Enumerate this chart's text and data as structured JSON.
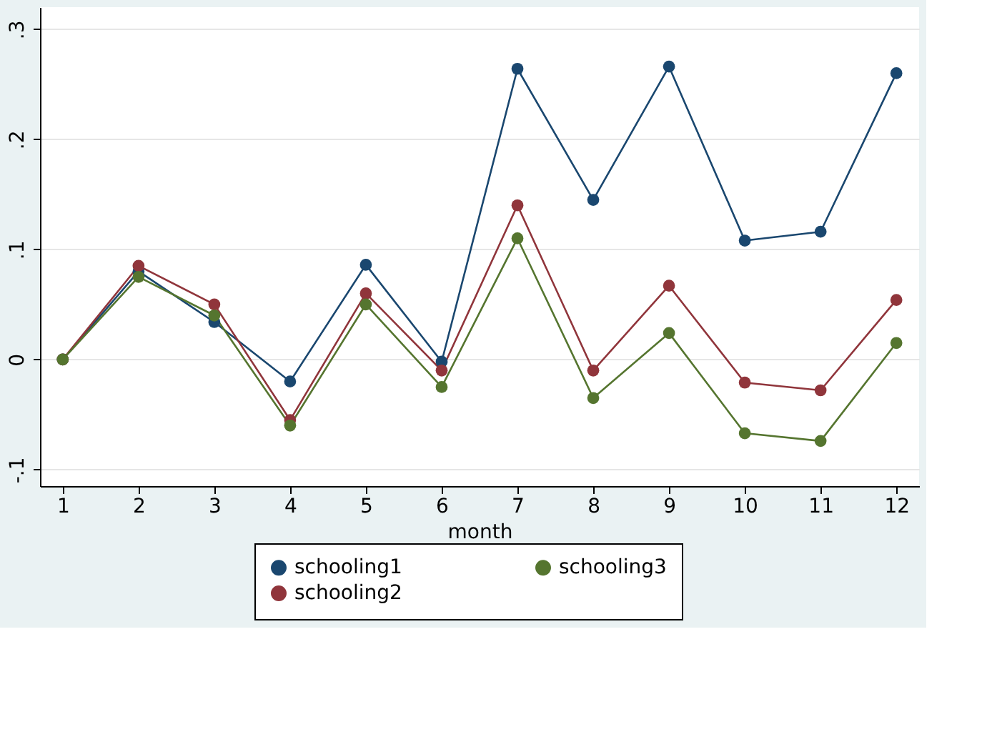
{
  "chart_data": {
    "type": "line",
    "xlabel": "month",
    "x": [
      1,
      2,
      3,
      4,
      5,
      6,
      7,
      8,
      9,
      10,
      11,
      12
    ],
    "series": [
      {
        "name": "schooling1",
        "color": "#1a476f",
        "values": [
          0,
          0.08,
          0.034,
          -0.02,
          0.086,
          -0.002,
          0.264,
          0.145,
          0.266,
          0.108,
          0.116,
          0.26
        ]
      },
      {
        "name": "schooling2",
        "color": "#90353b",
        "values": [
          0,
          0.085,
          0.05,
          -0.055,
          0.06,
          -0.01,
          0.14,
          -0.01,
          0.067,
          -0.021,
          -0.028,
          0.054
        ]
      },
      {
        "name": "schooling3",
        "color": "#55752f",
        "values": [
          0,
          0.075,
          0.04,
          -0.06,
          0.05,
          -0.025,
          0.11,
          -0.035,
          0.024,
          -0.067,
          -0.074,
          0.015
        ]
      }
    ],
    "xlim": [
      0.7,
      12.3
    ],
    "xticks": [
      1,
      2,
      3,
      4,
      5,
      6,
      7,
      8,
      9,
      10,
      11,
      12
    ],
    "ylim": [
      -0.115,
      0.32
    ],
    "yticks": [
      {
        "value": -0.1,
        "label": "-.1"
      },
      0,
      {
        "value": 0.1,
        "label": ".1"
      },
      {
        "value": 0.2,
        "label": ".2"
      },
      {
        "value": 0.3,
        "label": ".3"
      }
    ],
    "grid": "y",
    "legend": "bottom",
    "marker": "circle",
    "line_style": "solid"
  }
}
